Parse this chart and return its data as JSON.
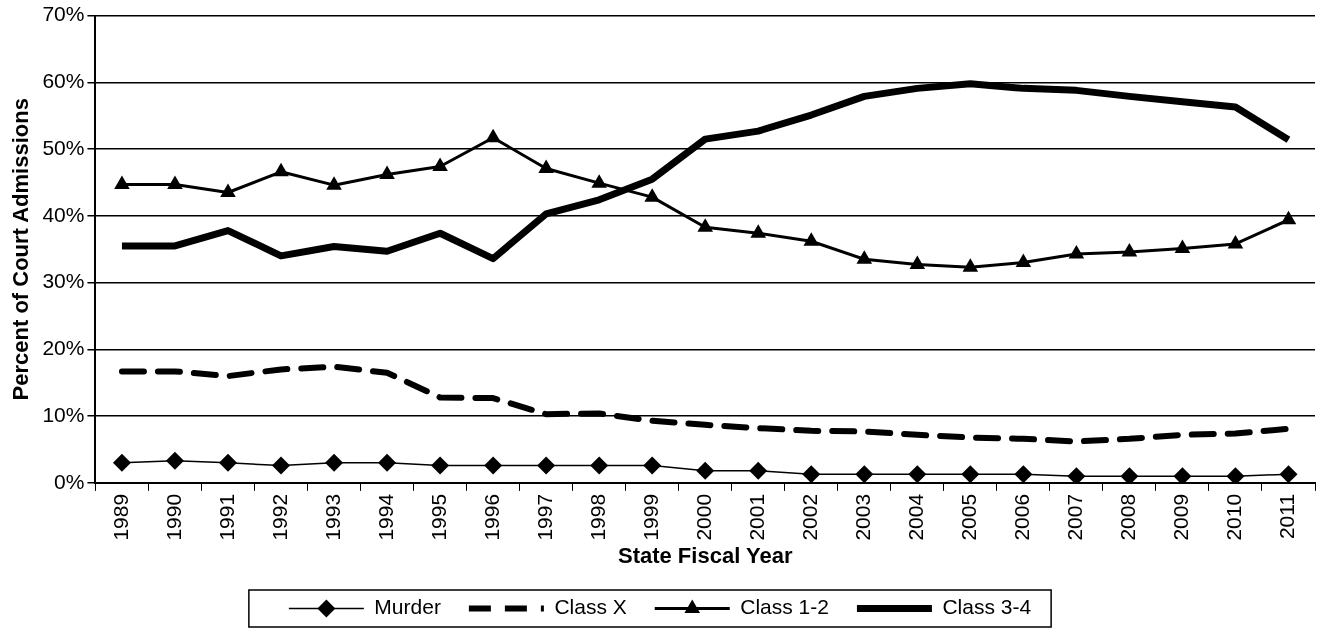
{
  "chart_data": {
    "type": "line",
    "xlabel": "State Fiscal Year",
    "ylabel": "Percent of Court Admissions",
    "categories": [
      "1989",
      "1990",
      "1991",
      "1992",
      "1993",
      "1994",
      "1995",
      "1996",
      "1997",
      "1998",
      "1999",
      "2000",
      "2001",
      "2002",
      "2003",
      "2004",
      "2005",
      "2006",
      "2007",
      "2008",
      "2009",
      "2010",
      "2011"
    ],
    "series": [
      {
        "name": "Murder",
        "color": "#000000",
        "marker": "diamond",
        "line_style": "solid",
        "values": [
          3.0,
          3.3,
          3.0,
          2.6,
          3.0,
          3.0,
          2.6,
          2.6,
          2.6,
          2.6,
          2.6,
          1.8,
          1.8,
          1.3,
          1.3,
          1.3,
          1.3,
          1.3,
          1.0,
          1.0,
          1.0,
          1.0,
          1.3
        ]
      },
      {
        "name": "Class X",
        "color": "#000000",
        "marker": "none",
        "line_style": "dashed",
        "values": [
          16.7,
          16.7,
          16.0,
          17.0,
          17.4,
          16.5,
          12.8,
          12.7,
          10.3,
          10.4,
          9.3,
          8.7,
          8.2,
          7.8,
          7.7,
          7.2,
          6.8,
          6.6,
          6.2,
          6.6,
          7.2,
          7.4,
          8.1
        ]
      },
      {
        "name": "Class 1-2",
        "color": "#000000",
        "marker": "triangle",
        "line_style": "solid",
        "values": [
          44.7,
          44.7,
          43.5,
          46.6,
          44.6,
          46.2,
          47.4,
          51.7,
          47.1,
          44.9,
          42.8,
          38.3,
          37.4,
          36.2,
          33.5,
          32.7,
          32.3,
          33.0,
          34.3,
          34.6,
          35.1,
          35.8,
          39.4
        ]
      },
      {
        "name": "Class 3-4",
        "color": "#000000",
        "marker": "none",
        "line_style": "solid",
        "values": [
          35.5,
          35.5,
          37.8,
          34.0,
          35.4,
          34.7,
          37.4,
          33.6,
          40.3,
          42.4,
          45.5,
          51.5,
          52.7,
          55.1,
          57.9,
          59.1,
          59.8,
          59.1,
          58.8,
          57.9,
          57.1,
          56.3,
          51.4
        ]
      }
    ],
    "ylim": [
      0,
      70
    ],
    "yticks": [
      {
        "value": 0,
        "label": "0%"
      },
      {
        "value": 10,
        "label": "10%"
      },
      {
        "value": 20,
        "label": "20%"
      },
      {
        "value": 30,
        "label": "30%"
      },
      {
        "value": 40,
        "label": "40%"
      },
      {
        "value": 50,
        "label": "50%"
      },
      {
        "value": 60,
        "label": "60%"
      },
      {
        "value": 70,
        "label": "70%"
      }
    ],
    "grid": "y",
    "legend": "bottom"
  }
}
